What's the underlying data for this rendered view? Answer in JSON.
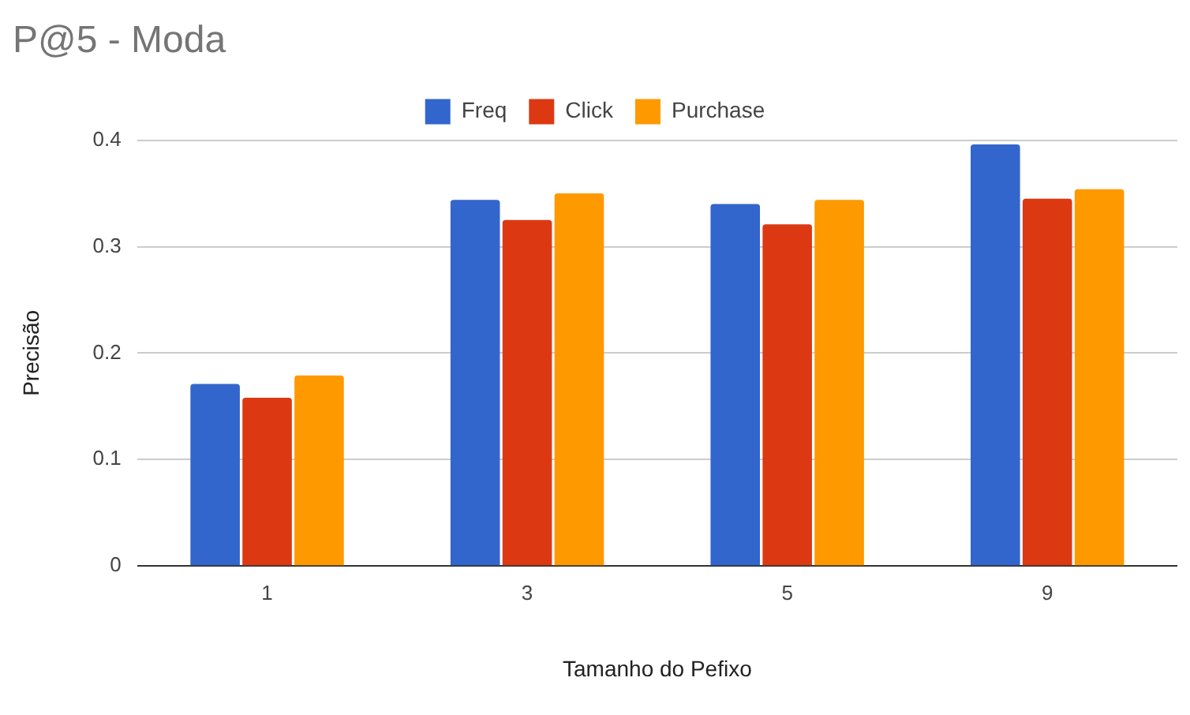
{
  "chart_data": {
    "type": "bar",
    "title": "P@5 - Moda",
    "xlabel": "Tamanho do Pefixo",
    "ylabel": "Precisão",
    "categories": [
      "1",
      "3",
      "5",
      "9"
    ],
    "series": [
      {
        "name": "Freq",
        "color": "#3366cc",
        "values": [
          0.171,
          0.344,
          0.34,
          0.396
        ]
      },
      {
        "name": "Click",
        "color": "#dc3912",
        "values": [
          0.158,
          0.325,
          0.321,
          0.345
        ]
      },
      {
        "name": "Purchase",
        "color": "#ff9900",
        "values": [
          0.179,
          0.35,
          0.344,
          0.354
        ]
      }
    ],
    "ylim": [
      0,
      0.4
    ],
    "yticks": [
      0,
      0.1,
      0.2,
      0.3,
      0.4
    ],
    "grid": "y",
    "legend": "top"
  }
}
